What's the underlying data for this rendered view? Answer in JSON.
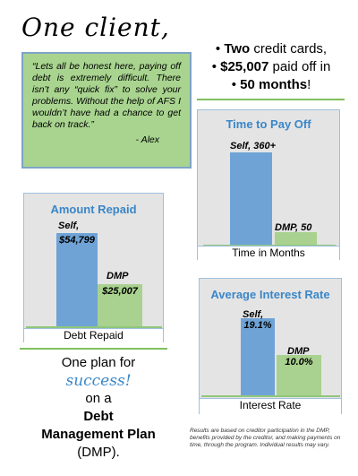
{
  "headline": "One client,",
  "quote": {
    "text": "“Lets all be honest here, paying off debt is extremely difficult. There isn’t any “quick fix” to solve your problems. Without the help of AFS I wouldn’t have had a chance to get back on track.”",
    "author": "- Alex"
  },
  "facts": [
    {
      "bullet": "•",
      "bold": "Two",
      "rest": " credit cards,"
    },
    {
      "bullet": "•",
      "bold": "$25,007",
      "rest": " paid off in"
    },
    {
      "bullet": "•",
      "bold": "50 months",
      "rest": "!"
    }
  ],
  "plan": {
    "line1": "One plan for",
    "success": "success!",
    "line3": "on a",
    "bold1": "Debt",
    "bold2": "Management Plan",
    "line6": "(DMP)."
  },
  "disclaimer": "Results are based on creditor participation in the DMP, benefits provided by the creditor, and making payments on time, through the program. Individual results may vary.",
  "colors": {
    "self": "#6fa3d6",
    "dmp": "#a9d18f",
    "title": "#3a86c8",
    "quote_bg": "#a8d48f"
  },
  "chart_data": [
    {
      "type": "bar",
      "title": "Time to Pay Off",
      "xlabel": "Time in Months",
      "categories": [
        "Self",
        "DMP"
      ],
      "values": [
        360,
        50
      ],
      "labels": [
        "Self, 360+",
        "DMP, 50"
      ]
    },
    {
      "type": "bar",
      "title": "Amount Repaid",
      "xlabel": "Debt Repaid",
      "categories": [
        "Self",
        "DMP"
      ],
      "values": [
        54799,
        25007
      ],
      "labels_top": [
        "Self,",
        "DMP"
      ],
      "labels_inside": [
        "$54,799",
        "$25,007"
      ]
    },
    {
      "type": "bar",
      "title": "Average Interest Rate",
      "xlabel": "Interest Rate",
      "categories": [
        "Self",
        "DMP"
      ],
      "values": [
        19.1,
        10.0
      ],
      "labels_top": [
        "Self,",
        "DMP"
      ],
      "labels_inside": [
        "19.1%",
        "10.0%"
      ]
    }
  ]
}
